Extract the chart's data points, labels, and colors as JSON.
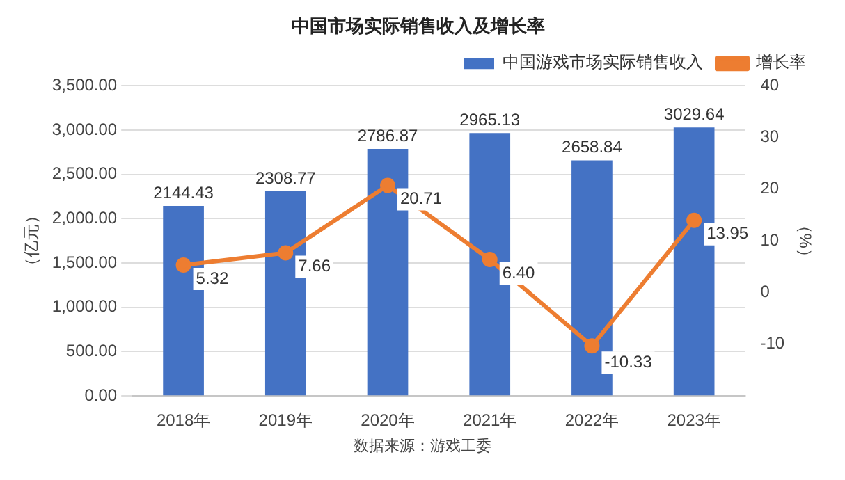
{
  "chart_data": {
    "type": "bar",
    "title": "中国市场实际销售收入及增长率",
    "categories": [
      "2018年",
      "2019年",
      "2020年",
      "2021年",
      "2022年",
      "2023年"
    ],
    "series": [
      {
        "name": "中国游戏市场实际销售收入",
        "color": "#4472c4",
        "values": [
          2144.43,
          2308.77,
          2786.87,
          2965.13,
          2658.84,
          3029.64
        ]
      },
      {
        "name": "增长率",
        "type": "line",
        "axis": "y2",
        "color": "#ed7d31",
        "values": [
          5.32,
          7.66,
          20.71,
          6.4,
          -10.33,
          13.95
        ],
        "marker": "circle"
      }
    ],
    "ylabel": "（亿元）",
    "y2label": "（%）",
    "ylim": [
      0,
      3500
    ],
    "yticks": [
      {
        "value": 0,
        "label": "0.00"
      },
      {
        "value": 500,
        "label": "500.00"
      },
      {
        "value": 1000,
        "label": "1,000.00"
      },
      {
        "value": 1500,
        "label": "1,500.00"
      },
      {
        "value": 2000,
        "label": "2,000.00"
      },
      {
        "value": 2500,
        "label": "2,500.00"
      },
      {
        "value": 3000,
        "label": "3,000.00"
      },
      {
        "value": 3500,
        "label": "3,500.00"
      }
    ],
    "y2lim": [
      -20,
      40
    ],
    "y2ticks": [
      -10,
      0,
      10,
      20,
      30,
      40
    ],
    "grid": "y",
    "legend": "top right",
    "value_labels": [
      [
        "2144.43",
        "2308.77",
        "2786.87",
        "2965.13",
        "2658.84",
        "3029.64"
      ],
      [
        "5.32",
        "7.66",
        "20.71",
        "6.40",
        "-10.33",
        "13.95"
      ]
    ],
    "annotations": [
      "数据来源：游戏工委"
    ]
  }
}
